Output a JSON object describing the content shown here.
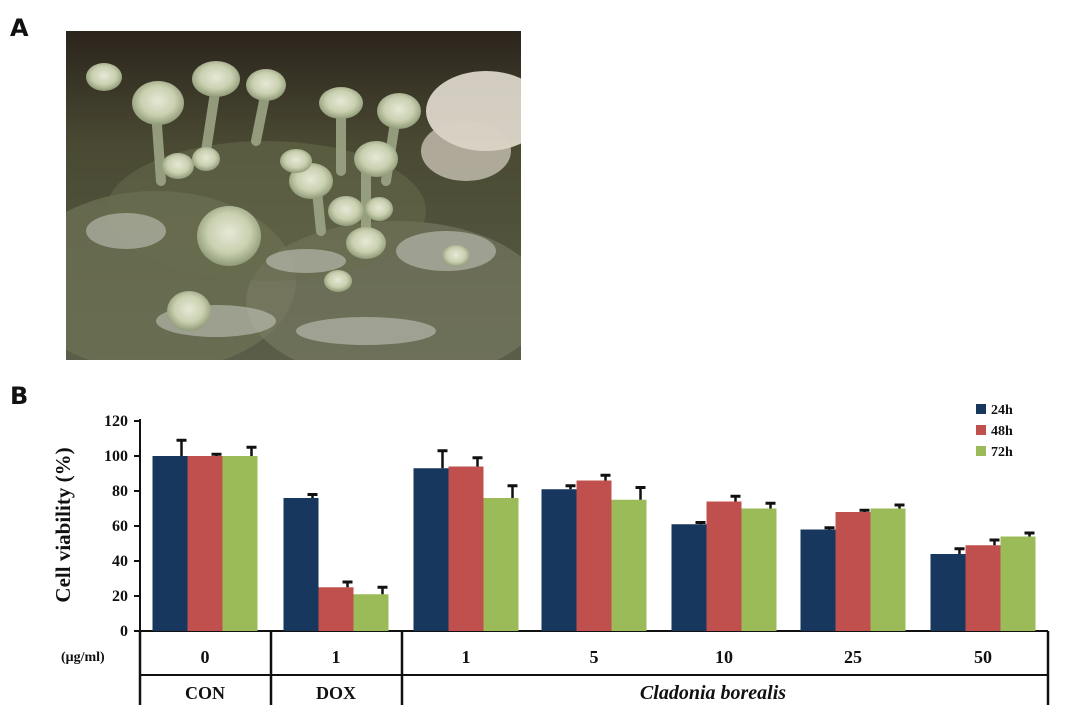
{
  "panels": {
    "a": "A",
    "b": "B"
  },
  "photo": {
    "subject": "lichen-photo"
  },
  "chart_data": {
    "type": "bar",
    "ylabel": "Cell viability (%)",
    "ylim": [
      0,
      120
    ],
    "yticks": [
      0,
      20,
      40,
      60,
      80,
      100,
      120
    ],
    "unit_label": "(μg/ml)",
    "categories": [
      "0",
      "1",
      "1",
      "5",
      "10",
      "25",
      "50"
    ],
    "groups": [
      {
        "label": "CON",
        "span": [
          0,
          0
        ],
        "italic": false
      },
      {
        "label": "DOX",
        "span": [
          1,
          1
        ],
        "italic": false
      },
      {
        "label": "Cladonia borealis",
        "span": [
          2,
          6
        ],
        "italic": true
      }
    ],
    "legend_position": "top-right",
    "grid": false,
    "series": [
      {
        "name": "24h",
        "color": "#17375e",
        "values": [
          100,
          76,
          93,
          81,
          61,
          58,
          44
        ],
        "errors": [
          9,
          2,
          10,
          2,
          1,
          1,
          3
        ]
      },
      {
        "name": "48h",
        "color": "#c0504d",
        "values": [
          100,
          25,
          94,
          86,
          74,
          68,
          49
        ],
        "errors": [
          1,
          3,
          5,
          3,
          3,
          1,
          3
        ]
      },
      {
        "name": "72h",
        "color": "#9bbb59",
        "values": [
          100,
          21,
          76,
          75,
          70,
          70,
          54
        ],
        "errors": [
          5,
          4,
          7,
          7,
          3,
          2,
          2
        ]
      }
    ]
  }
}
